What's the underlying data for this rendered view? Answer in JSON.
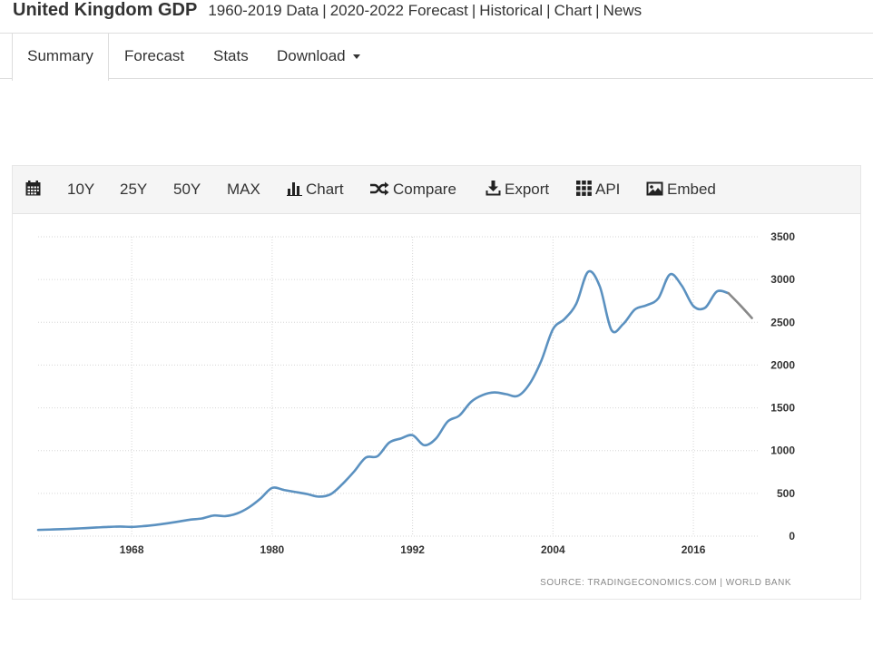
{
  "header": {
    "title": "United Kingdom GDP",
    "links": [
      "1960-2019 Data",
      "2020-2022 Forecast",
      "Historical",
      "Chart",
      "News"
    ],
    "separator": "|"
  },
  "nav": {
    "tabs": [
      {
        "label": "Summary",
        "active": true
      },
      {
        "label": "Forecast"
      },
      {
        "label": "Stats"
      },
      {
        "label": "Download"
      }
    ]
  },
  "toolbar": {
    "calendar_icon": "calendar-icon",
    "ranges": [
      "10Y",
      "25Y",
      "50Y",
      "MAX"
    ],
    "chart_label": "Chart",
    "compare_label": "Compare",
    "export_label": "Export",
    "api_label": "API",
    "embed_label": "Embed"
  },
  "chart_data": {
    "type": "line",
    "title": "",
    "xlabel": "",
    "ylabel": "",
    "xlim": [
      1960,
      2021.5
    ],
    "ylim": [
      0,
      3500
    ],
    "x_ticks": [
      1968,
      1980,
      1992,
      2004,
      2016
    ],
    "y_ticks": [
      0,
      500,
      1000,
      1500,
      2000,
      2500,
      3000,
      3500
    ],
    "y_axis_side": "right",
    "grid": true,
    "source_text": "SOURCE: TRADINGECONOMICS.COM | WORLD BANK",
    "colors": {
      "historical": "#5b91c0",
      "forecast": "#888888",
      "grid": "#d6d6d6"
    },
    "series": [
      {
        "kind": "historical",
        "x": [
          1960,
          1961,
          1962,
          1963,
          1964,
          1965,
          1966,
          1967,
          1968,
          1969,
          1970,
          1971,
          1972,
          1973,
          1974,
          1975,
          1976,
          1977,
          1978,
          1979,
          1980,
          1981,
          1982,
          1983,
          1984,
          1985,
          1986,
          1987,
          1988,
          1989,
          1990,
          1991,
          1992,
          1993,
          1994,
          1995,
          1996,
          1997,
          1998,
          1999,
          2000,
          2001,
          2002,
          2003,
          2004,
          2005,
          2006,
          2007,
          2008,
          2009,
          2010,
          2011,
          2012,
          2013,
          2014,
          2015,
          2016,
          2017,
          2018,
          2019
        ],
        "y": [
          73,
          77,
          81,
          87,
          94,
          101,
          108,
          112,
          108,
          117,
          131,
          149,
          170,
          193,
          207,
          241,
          234,
          265,
          335,
          439,
          564,
          540,
          516,
          492,
          462,
          490,
          608,
          755,
          918,
          934,
          1093,
          1142,
          1180,
          1063,
          1141,
          1340,
          1410,
          1570,
          1650,
          1680,
          1660,
          1640,
          1780,
          2050,
          2420,
          2540,
          2720,
          3090,
          2920,
          2410,
          2480,
          2650,
          2700,
          2780,
          3060,
          2930,
          2690,
          2670,
          2860,
          2840
        ]
      },
      {
        "kind": "forecast",
        "x": [
          2019,
          2020,
          2021
        ],
        "y": [
          2840,
          2700,
          2550
        ]
      }
    ]
  }
}
